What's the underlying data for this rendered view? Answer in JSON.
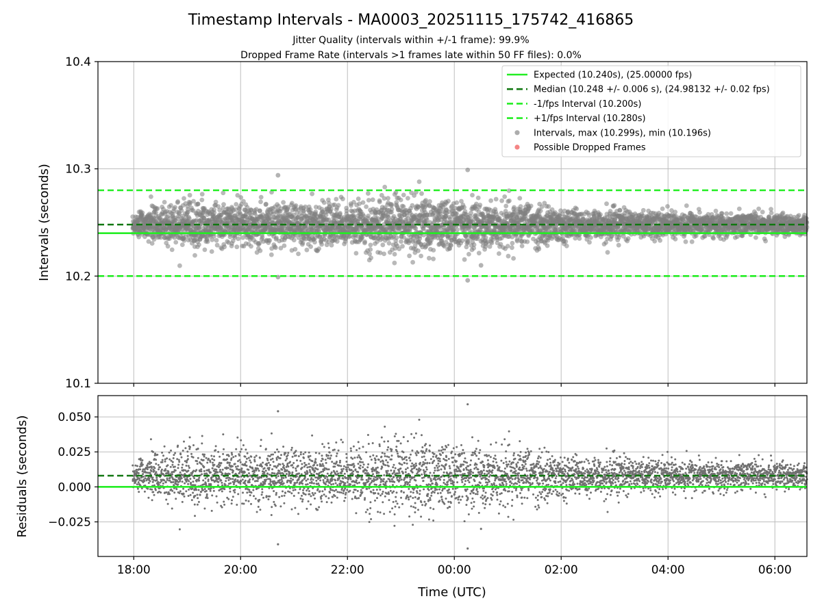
{
  "chart_data": {
    "type": "scatter",
    "title": "Timestamp Intervals - MA0003_20251115_175742_416865",
    "subtitle_lines": [
      "Jitter Quality (intervals within +/-1 frame): 99.9%",
      "Dropped Frame Rate (intervals >1 frames late within 50 FF files): 0.0%"
    ],
    "xlabel": "Time (UTC)",
    "x_range_hours": [
      17.33,
      30.6
    ],
    "x_ticks": [
      {
        "value": 18,
        "label": "18:00"
      },
      {
        "value": 20,
        "label": "20:00"
      },
      {
        "value": 22,
        "label": "22:00"
      },
      {
        "value": 24,
        "label": "00:00"
      },
      {
        "value": 26,
        "label": "02:00"
      },
      {
        "value": 28,
        "label": "04:00"
      },
      {
        "value": 30,
        "label": "06:00"
      }
    ],
    "x_grid": [
      18,
      20,
      22,
      24,
      26,
      28,
      30
    ],
    "data_x_start": 17.98,
    "data_x_end": 30.6,
    "top_panel": {
      "ylabel": "Intervals (seconds)",
      "ylim": [
        10.1,
        10.4
      ],
      "y_ticks": [
        {
          "value": 10.1,
          "label": "10.1"
        },
        {
          "value": 10.2,
          "label": "10.2"
        },
        {
          "value": 10.3,
          "label": "10.3"
        },
        {
          "value": 10.4,
          "label": "10.4"
        }
      ],
      "y_grid": [
        10.2,
        10.3
      ],
      "lines": [
        {
          "name": "expected",
          "value": 10.24,
          "color": "#22ee22",
          "style": "solid"
        },
        {
          "name": "median",
          "value": 10.248,
          "color": "#117711",
          "style": "dashed"
        },
        {
          "name": "minus-fps",
          "value": 10.2,
          "color": "#22ee22",
          "style": "dashed"
        },
        {
          "name": "plus-fps",
          "value": 10.28,
          "color": "#22ee22",
          "style": "dashed"
        }
      ],
      "legend": [
        {
          "label": "Expected (10.240s), (25.00000 fps)",
          "kind": "line",
          "color": "#22ee22",
          "style": "solid"
        },
        {
          "label": "Median (10.248 +/- 0.006 s), (24.98132 +/- 0.02 fps)",
          "kind": "line",
          "color": "#117711",
          "style": "dashed"
        },
        {
          "label": "-1/fps Interval (10.200s)",
          "kind": "line",
          "color": "#22ee22",
          "style": "dashed"
        },
        {
          "label": "+1/fps Interval (10.280s)",
          "kind": "line",
          "color": "#22ee22",
          "style": "dashed"
        },
        {
          "label": "Intervals, max (10.299s), min (10.196s)",
          "kind": "marker",
          "color": "#808080"
        },
        {
          "label": "Possible Dropped Frames",
          "kind": "marker",
          "color": "#ee4444"
        }
      ],
      "legend_position": "top-right",
      "point_color": "#808080"
    },
    "bottom_panel": {
      "ylabel": "Residuals (seconds)",
      "ylim": [
        -0.0497,
        0.0652
      ],
      "y_ticks": [
        {
          "value": 0.05,
          "label": "0.050"
        },
        {
          "value": 0.025,
          "label": "0.025"
        },
        {
          "value": 0.0,
          "label": "0.000"
        },
        {
          "value": -0.025,
          "label": "−0.025"
        }
      ],
      "y_grid": [
        0.05,
        0.025,
        0.0,
        -0.025
      ],
      "lines": [
        {
          "name": "expected",
          "value": 0.0,
          "color": "#22ee22",
          "style": "solid"
        },
        {
          "name": "median",
          "value": 0.008,
          "color": "#117711",
          "style": "dashed"
        }
      ],
      "point_color": "#707070"
    },
    "median_interval": 10.248,
    "expected_interval": 10.24,
    "point_count": 4500,
    "scatter_envelope": [
      {
        "t": 18.0,
        "spread": 0.006
      },
      {
        "t": 18.6,
        "spread": 0.01
      },
      {
        "t": 19.2,
        "spread": 0.012
      },
      {
        "t": 20.0,
        "spread": 0.01
      },
      {
        "t": 21.0,
        "spread": 0.011
      },
      {
        "t": 22.0,
        "spread": 0.012
      },
      {
        "t": 23.0,
        "spread": 0.014
      },
      {
        "t": 24.0,
        "spread": 0.013
      },
      {
        "t": 25.0,
        "spread": 0.012
      },
      {
        "t": 26.0,
        "spread": 0.008
      },
      {
        "t": 27.0,
        "spread": 0.008
      },
      {
        "t": 28.0,
        "spread": 0.006
      },
      {
        "t": 29.0,
        "spread": 0.006
      },
      {
        "t": 30.6,
        "spread": 0.005
      }
    ],
    "outliers": [
      {
        "t": 20.7,
        "interval": 10.294
      },
      {
        "t": 20.7,
        "interval": 10.199
      },
      {
        "t": 24.25,
        "interval": 10.299
      },
      {
        "t": 24.25,
        "interval": 10.196
      },
      {
        "t": 24.5,
        "interval": 10.21
      }
    ]
  }
}
